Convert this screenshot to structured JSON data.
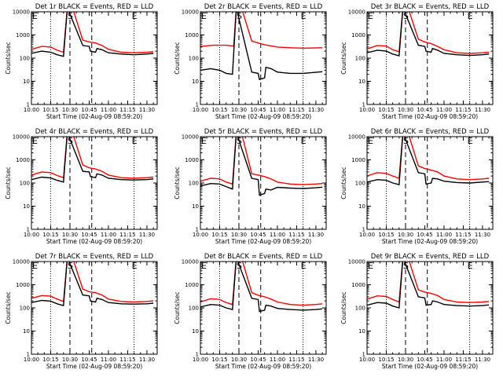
{
  "chart_data": [
    {
      "type": "line",
      "title": "Det 1r BLACK = Events, RED = LLD",
      "xlabel": "Start Time (02-Aug-09 08:59:20)",
      "ylabel": "Counts/sec",
      "xticks": [
        "10:00",
        "10:15",
        "10:30",
        "10:45",
        "11:00",
        "11:15",
        "11:30"
      ],
      "yticks": [
        "1",
        "10",
        "100",
        "1000",
        "10000"
      ],
      "ylim": [
        1,
        10000
      ],
      "yscale": "log",
      "markers": [
        "E",
        "S",
        "E"
      ],
      "series": [
        {
          "color": "#ff0000",
          "x": [
            0,
            8,
            15,
            20,
            25,
            28,
            30,
            32,
            40,
            45,
            50,
            55,
            60,
            70,
            80,
            90,
            95
          ],
          "y": [
            240,
            320,
            300,
            220,
            180,
            15000,
            15000,
            15000,
            600,
            500,
            450,
            350,
            240,
            180,
            170,
            180,
            190
          ]
        },
        {
          "color": "#000000",
          "x": [
            0,
            8,
            15,
            20,
            25,
            28,
            40,
            45,
            46,
            50,
            51,
            55,
            60,
            70,
            80,
            90,
            95
          ],
          "y": [
            160,
            200,
            180,
            140,
            120,
            15000,
            350,
            320,
            200,
            180,
            260,
            230,
            170,
            150,
            140,
            150,
            160
          ]
        }
      ]
    },
    {
      "type": "line",
      "title": "Det 2r BLACK = Events, RED = LLD",
      "xlabel": "Start Time (02-Aug-09 08:59:20)",
      "ylabel": "Counts/sec",
      "xticks": [
        "10:00",
        "10:15",
        "10:30",
        "10:45",
        "11:00",
        "11:15",
        "11:30"
      ],
      "yticks": [
        "1",
        "10",
        "100",
        "1000",
        "10000"
      ],
      "ylim": [
        1,
        10000
      ],
      "yscale": "log",
      "markers": [
        "E",
        "S",
        "E"
      ],
      "series": [
        {
          "color": "#ff0000",
          "x": [
            0,
            10,
            20,
            26,
            28,
            30,
            32,
            40,
            45,
            50,
            60,
            70,
            80,
            95
          ],
          "y": [
            320,
            360,
            360,
            330,
            15000,
            15000,
            15000,
            550,
            450,
            380,
            300,
            280,
            270,
            280
          ]
        },
        {
          "color": "#000000",
          "x": [
            0,
            8,
            15,
            20,
            25,
            28,
            40,
            45,
            46,
            50,
            51,
            55,
            60,
            70,
            80,
            95
          ],
          "y": [
            30,
            35,
            30,
            22,
            20,
            15000,
            25,
            22,
            12,
            14,
            40,
            35,
            25,
            22,
            22,
            26
          ]
        }
      ]
    },
    {
      "type": "line",
      "title": "Det 3r BLACK = Events, RED = LLD",
      "xlabel": "Start Time (02-Aug-09 08:59:20)",
      "ylabel": "Counts/sec",
      "xticks": [
        "10:00",
        "10:15",
        "10:30",
        "10:45",
        "11:00",
        "11:15",
        "11:30"
      ],
      "yticks": [
        "1",
        "10",
        "100",
        "1000",
        "10000"
      ],
      "ylim": [
        1,
        10000
      ],
      "yscale": "log",
      "markers": [
        "E",
        "S",
        "E"
      ],
      "series": [
        {
          "color": "#ff0000",
          "x": [
            0,
            8,
            15,
            20,
            25,
            28,
            30,
            32,
            40,
            45,
            50,
            55,
            60,
            70,
            80,
            90,
            95
          ],
          "y": [
            250,
            350,
            330,
            230,
            190,
            15000,
            15000,
            15000,
            650,
            500,
            420,
            320,
            230,
            170,
            160,
            170,
            180
          ]
        },
        {
          "color": "#000000",
          "x": [
            0,
            8,
            15,
            20,
            25,
            28,
            40,
            45,
            46,
            50,
            51,
            55,
            60,
            70,
            80,
            90,
            95
          ],
          "y": [
            170,
            220,
            200,
            150,
            125,
            15000,
            360,
            320,
            200,
            180,
            260,
            220,
            160,
            140,
            130,
            140,
            150
          ]
        }
      ]
    },
    {
      "type": "line",
      "title": "Det 4r BLACK = Events, RED = LLD",
      "xlabel": "Start Time (02-Aug-09 08:59:20)",
      "ylabel": "Counts/sec",
      "xticks": [
        "10:00",
        "10:15",
        "10:30",
        "10:45",
        "11:00",
        "11:15",
        "11:30"
      ],
      "yticks": [
        "1",
        "10",
        "100",
        "1000",
        "10000"
      ],
      "ylim": [
        1,
        10000
      ],
      "yscale": "log",
      "markers": [
        "E",
        "S",
        "E"
      ],
      "series": [
        {
          "color": "#ff0000",
          "x": [
            0,
            8,
            15,
            20,
            25,
            28,
            30,
            32,
            40,
            45,
            50,
            55,
            60,
            70,
            80,
            90,
            95
          ],
          "y": [
            220,
            300,
            280,
            210,
            170,
            15000,
            15000,
            15000,
            600,
            450,
            400,
            320,
            220,
            170,
            160,
            170,
            180
          ]
        },
        {
          "color": "#000000",
          "x": [
            0,
            8,
            15,
            20,
            25,
            28,
            40,
            45,
            46,
            50,
            51,
            55,
            60,
            70,
            80,
            90,
            95
          ],
          "y": [
            140,
            180,
            165,
            130,
            110,
            15000,
            320,
            300,
            190,
            170,
            250,
            220,
            160,
            140,
            135,
            140,
            150
          ]
        }
      ]
    },
    {
      "type": "line",
      "title": "Det 5r BLACK = Events, RED = LLD",
      "xlabel": "Start Time (02-Aug-09 08:59:20)",
      "ylabel": "Counts/sec",
      "xticks": [
        "10:00",
        "10:15",
        "10:30",
        "10:45",
        "11:00",
        "11:15",
        "11:30"
      ],
      "yticks": [
        "1",
        "10",
        "100",
        "1000",
        "10000"
      ],
      "ylim": [
        1,
        10000
      ],
      "yscale": "log",
      "markers": [
        "E",
        "S",
        "E"
      ],
      "series": [
        {
          "color": "#ff0000",
          "x": [
            0,
            8,
            15,
            20,
            25,
            28,
            30,
            32,
            40,
            45,
            50,
            55,
            60,
            70,
            80,
            90,
            95
          ],
          "y": [
            120,
            160,
            150,
            110,
            90,
            15000,
            15000,
            15000,
            250,
            220,
            190,
            150,
            110,
            90,
            85,
            90,
            95
          ]
        },
        {
          "color": "#000000",
          "x": [
            0,
            8,
            15,
            20,
            25,
            28,
            40,
            45,
            46,
            50,
            51,
            55,
            60,
            70,
            80,
            90,
            95
          ],
          "y": [
            75,
            95,
            90,
            70,
            55,
            15000,
            160,
            140,
            30,
            35,
            55,
            50,
            65,
            60,
            58,
            62,
            66
          ]
        }
      ]
    },
    {
      "type": "line",
      "title": "Det 6r BLACK = Events, RED = LLD",
      "xlabel": "Start Time (02-Aug-09 08:59:20)",
      "ylabel": "Counts/sec",
      "xticks": [
        "10:00",
        "10:15",
        "10:30",
        "10:45",
        "11:00",
        "11:15",
        "11:30"
      ],
      "yticks": [
        "1",
        "10",
        "100",
        "1000",
        "10000"
      ],
      "ylim": [
        1,
        10000
      ],
      "yscale": "log",
      "markers": [
        "E",
        "S",
        "E"
      ],
      "series": [
        {
          "color": "#ff0000",
          "x": [
            0,
            8,
            15,
            20,
            25,
            28,
            30,
            32,
            40,
            45,
            50,
            55,
            60,
            70,
            80,
            90,
            95
          ],
          "y": [
            200,
            280,
            260,
            200,
            160,
            15000,
            15000,
            15000,
            550,
            420,
            360,
            300,
            200,
            150,
            140,
            150,
            160
          ]
        },
        {
          "color": "#000000",
          "x": [
            0,
            8,
            15,
            20,
            25,
            28,
            40,
            45,
            46,
            50,
            51,
            55,
            60,
            70,
            80,
            90,
            95
          ],
          "y": [
            110,
            140,
            130,
            100,
            85,
            15000,
            280,
            250,
            90,
            100,
            160,
            150,
            120,
            105,
            100,
            110,
            115
          ]
        }
      ]
    },
    {
      "type": "line",
      "title": "Det 7r BLACK = Events, RED = LLD",
      "xlabel": "Start Time (02-Aug-09 08:59:20)",
      "ylabel": "Counts/sec",
      "xticks": [
        "10:00",
        "10:15",
        "10:30",
        "10:45",
        "11:00",
        "11:15",
        "11:30"
      ],
      "yticks": [
        "1",
        "10",
        "100",
        "1000",
        "10000"
      ],
      "ylim": [
        1,
        10000
      ],
      "yscale": "log",
      "markers": [
        "E",
        "S",
        "E"
      ],
      "series": [
        {
          "color": "#ff0000",
          "x": [
            0,
            8,
            15,
            20,
            25,
            28,
            30,
            32,
            40,
            45,
            50,
            55,
            60,
            70,
            80,
            90,
            95
          ],
          "y": [
            260,
            340,
            320,
            240,
            190,
            15000,
            15000,
            15000,
            650,
            500,
            450,
            360,
            240,
            190,
            180,
            190,
            200
          ]
        },
        {
          "color": "#000000",
          "x": [
            0,
            8,
            15,
            20,
            25,
            28,
            40,
            45,
            46,
            50,
            51,
            55,
            60,
            70,
            80,
            90,
            95
          ],
          "y": [
            170,
            210,
            195,
            150,
            125,
            15000,
            360,
            330,
            200,
            180,
            260,
            230,
            170,
            150,
            145,
            150,
            160
          ]
        }
      ]
    },
    {
      "type": "line",
      "title": "Det 8r BLACK = Events, RED = LLD",
      "xlabel": "Start Time (02-Aug-09 08:59:20)",
      "ylabel": "Counts/sec",
      "xticks": [
        "10:00",
        "10:15",
        "10:30",
        "10:45",
        "11:00",
        "11:15",
        "11:30"
      ],
      "yticks": [
        "1",
        "10",
        "100",
        "1000",
        "10000"
      ],
      "ylim": [
        1,
        10000
      ],
      "yscale": "log",
      "markers": [
        "E",
        "S",
        "E"
      ],
      "series": [
        {
          "color": "#ff0000",
          "x": [
            0,
            8,
            15,
            20,
            25,
            28,
            30,
            32,
            40,
            45,
            50,
            55,
            60,
            70,
            80,
            90,
            95
          ],
          "y": [
            180,
            250,
            230,
            170,
            140,
            15000,
            15000,
            15000,
            450,
            350,
            300,
            240,
            180,
            140,
            130,
            140,
            150
          ]
        },
        {
          "color": "#000000",
          "x": [
            0,
            8,
            15,
            20,
            25,
            28,
            40,
            45,
            46,
            50,
            51,
            55,
            60,
            70,
            80,
            90,
            95
          ],
          "y": [
            110,
            140,
            130,
            100,
            85,
            15000,
            260,
            230,
            70,
            80,
            130,
            120,
            95,
            85,
            80,
            85,
            90
          ]
        }
      ]
    },
    {
      "type": "line",
      "title": "Det 9r BLACK = Events, RED = LLD",
      "xlabel": "Start Time (02-Aug-09 08:59:20)",
      "ylabel": "Counts/sec",
      "xticks": [
        "10:00",
        "10:15",
        "10:30",
        "10:45",
        "11:00",
        "11:15",
        "11:30"
      ],
      "yticks": [
        "1",
        "10",
        "100",
        "1000",
        "10000"
      ],
      "ylim": [
        1,
        10000
      ],
      "yscale": "log",
      "markers": [
        "E",
        "S",
        "E"
      ],
      "series": [
        {
          "color": "#ff0000",
          "x": [
            0,
            8,
            15,
            20,
            25,
            28,
            30,
            32,
            40,
            45,
            50,
            55,
            60,
            70,
            80,
            90,
            95
          ],
          "y": [
            240,
            330,
            310,
            230,
            180,
            15000,
            15000,
            15000,
            600,
            480,
            420,
            340,
            230,
            180,
            170,
            180,
            190
          ]
        },
        {
          "color": "#000000",
          "x": [
            0,
            8,
            15,
            20,
            25,
            28,
            40,
            45,
            46,
            50,
            51,
            55,
            60,
            70,
            80,
            90,
            95
          ],
          "y": [
            130,
            170,
            160,
            120,
            100,
            15000,
            300,
            270,
            130,
            140,
            200,
            180,
            140,
            125,
            120,
            125,
            135
          ]
        }
      ]
    }
  ]
}
